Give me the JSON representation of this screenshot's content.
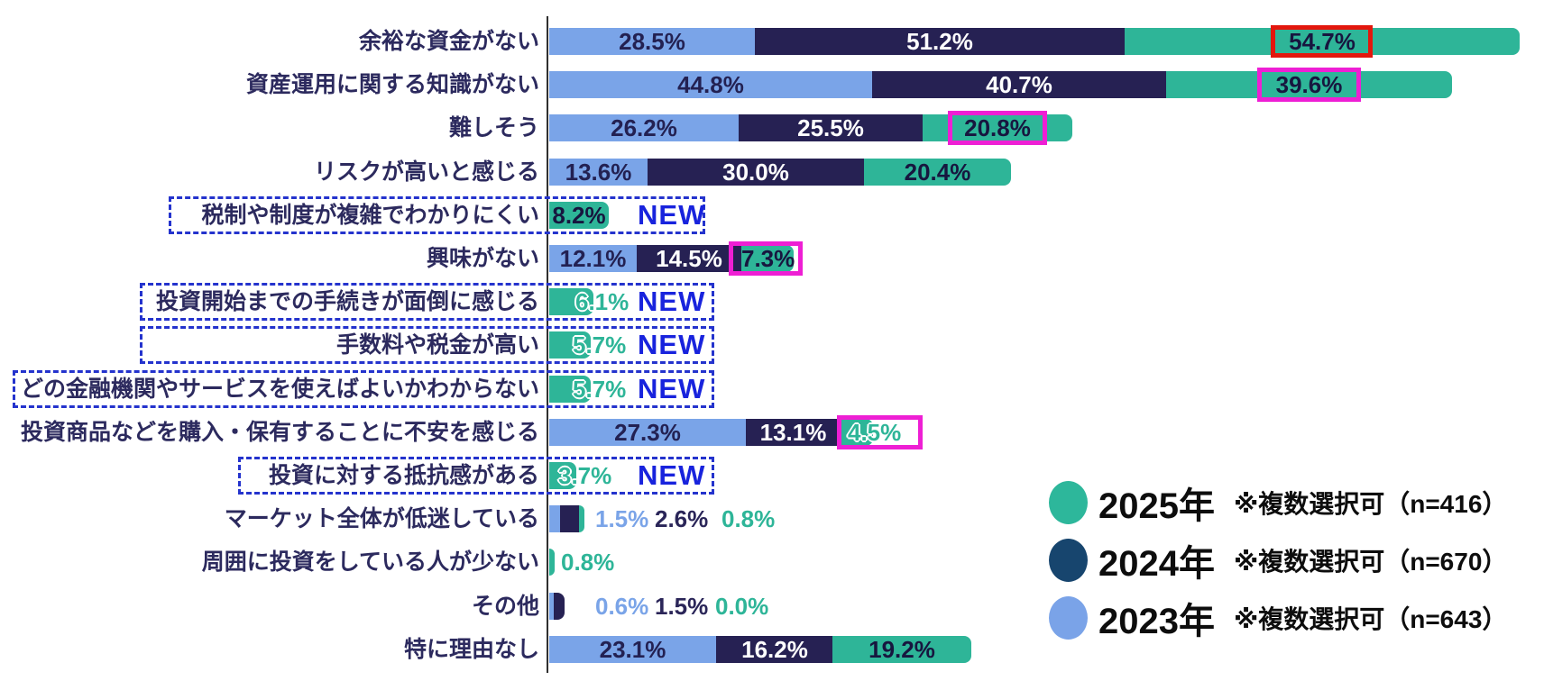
{
  "chart_data": {
    "type": "bar",
    "stacked": true,
    "orientation": "horizontal",
    "unit": "%",
    "title": "",
    "new_badge_text": "NEW",
    "series": [
      {
        "key": "2023",
        "label": "2023年",
        "note": "※複数選択可（n=643）",
        "n": 643,
        "bar_color": "#7aa4e8",
        "legend_color": "#7aa3e8"
      },
      {
        "key": "2024",
        "label": "2024年",
        "note": "※複数選択可（n=670）",
        "n": 670,
        "bar_color": "#262153",
        "legend_color": "#17456e"
      },
      {
        "key": "2025",
        "label": "2025年",
        "note": "※複数選択可（n=416）",
        "n": 416,
        "bar_color": "#2eb598",
        "legend_color": "#2db79b"
      }
    ],
    "legend_display_order": [
      "2025",
      "2024",
      "2023"
    ],
    "categories": [
      {
        "label": "余裕な資金がない",
        "values": {
          "2023": 28.5,
          "2024": 51.2,
          "2025": 54.7
        },
        "highlight": {
          "series": "2025",
          "style": "red-box"
        }
      },
      {
        "label": "資産運用に関する知識がない",
        "values": {
          "2023": 44.8,
          "2024": 40.7,
          "2025": 39.6
        },
        "highlight": {
          "series": "2025",
          "style": "magenta-box"
        }
      },
      {
        "label": "難しそう",
        "values": {
          "2023": 26.2,
          "2024": 25.5,
          "2025": 20.8
        },
        "highlight": {
          "series": "2025",
          "style": "magenta-box"
        }
      },
      {
        "label": "リスクが高いと感じる",
        "values": {
          "2023": 13.6,
          "2024": 30.0,
          "2025": 20.4
        }
      },
      {
        "label": "税制や制度が複雑でわかりにくい",
        "values": {
          "2025": 8.2
        },
        "new": true
      },
      {
        "label": "興味がない",
        "values": {
          "2023": 12.1,
          "2024": 14.5,
          "2025": 7.3
        },
        "highlight": {
          "series": "2025",
          "style": "magenta-box"
        }
      },
      {
        "label": "投資開始までの手続きが面倒に感じる",
        "values": {
          "2025": 6.1
        },
        "new": true
      },
      {
        "label": "手数料や税金が高い",
        "values": {
          "2025": 5.7
        },
        "new": true
      },
      {
        "label": "どの金融機関やサービスを使えばよいかわからない",
        "values": {
          "2025": 5.7
        },
        "new": true
      },
      {
        "label": "投資商品などを購入・保有することに不安を感じる",
        "values": {
          "2023": 27.3,
          "2024": 13.1,
          "2025": 4.5
        },
        "highlight": {
          "series": "2025",
          "style": "magenta-box"
        }
      },
      {
        "label": "投資に対する抵抗感がある",
        "values": {
          "2025": 3.7
        },
        "new": true
      },
      {
        "label": "マーケット全体が低迷している",
        "values": {
          "2023": 1.5,
          "2024": 2.6,
          "2025": 0.8
        },
        "value_labels_outside": true
      },
      {
        "label": "周囲に投資をしている人が少ない",
        "values": {
          "2025": 0.8
        },
        "value_labels_outside": true
      },
      {
        "label": "その他",
        "values": {
          "2023": 0.6,
          "2024": 1.5,
          "2025": 0.0
        },
        "value_labels_outside": true
      },
      {
        "label": "特に理由なし",
        "values": {
          "2023": 23.1,
          "2024": 16.2,
          "2025": 19.2
        }
      }
    ],
    "colors": {
      "background": "#ffffff",
      "axis_line": "#2f2f2f",
      "category_label": "#2c2a5e",
      "value_on_blue": "#232152",
      "value_on_navy": "#ffffff",
      "value_on_teal": "#17163f",
      "value_teal_text": "#2eb598",
      "value_blue_text": "#7aa4e8",
      "value_navy_text": "#2a2558",
      "new_badge": "#1823dd",
      "new_outline": "#2433cd",
      "highlight_magenta": "#ee1fd4",
      "highlight_red": "#e3170d",
      "legend_text": "#0d0d0d"
    }
  }
}
